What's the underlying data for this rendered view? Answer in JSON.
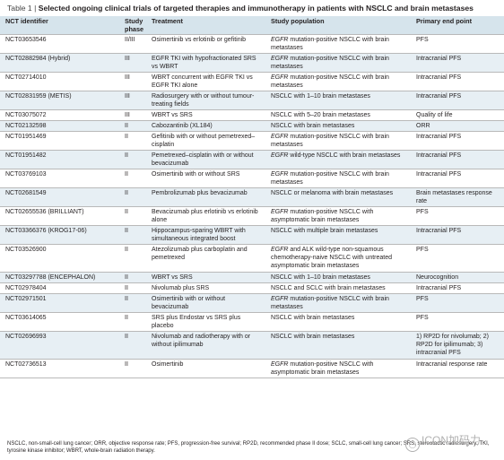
{
  "table": {
    "label": "Table 1 |",
    "title": "Selected ongoing clinical trials of targeted therapies and immunotherapy in patients with NSCLC and brain metastases",
    "headers": {
      "nct": "NCT identifier",
      "phase": "Study phase",
      "treatment": "Treatment",
      "population": "Study population",
      "endpoint": "Primary end point"
    },
    "rows": [
      {
        "nct": "NCT03653546",
        "phase": "II/III",
        "treatment": "Osimertinib vs erlotinib or gefitinib",
        "pop_em": "EGFR",
        "pop": " mutation-positive NSCLC with brain metastases",
        "endpoint": "PFS"
      },
      {
        "nct": "NCT02882984 (Hybrid)",
        "phase": "III",
        "treatment": "EGFR TKI with hypofractionated SRS vs WBRT",
        "pop_em": "EGFR",
        "pop": " mutation-positive NSCLC with brain metastases",
        "endpoint": "Intracranial PFS"
      },
      {
        "nct": "NCT02714010",
        "phase": "III",
        "treatment": "WBRT concurrent with EGFR TKI vs EGFR TKI alone",
        "pop_em": "EGFR",
        "pop": " mutation-positive NSCLC with brain metastases",
        "endpoint": "Intracranial PFS"
      },
      {
        "nct": "NCT02831959 (METIS)",
        "phase": "III",
        "treatment": "Radiosurgery with or without tumour-treating fields",
        "pop_em": "",
        "pop": "NSCLC with 1–10 brain metastases",
        "endpoint": "Intracranial PFS"
      },
      {
        "nct": "NCT03075072",
        "phase": "III",
        "treatment": "WBRT vs SRS",
        "pop_em": "",
        "pop": "NSCLC with 5–20 brain metastases",
        "endpoint": "Quality of life"
      },
      {
        "nct": "NCT02132598",
        "phase": "II",
        "treatment": "Cabozantinib (XL184)",
        "pop_em": "",
        "pop": "NSCLC with brain metastases",
        "endpoint": "ORR"
      },
      {
        "nct": "NCT01951469",
        "phase": "II",
        "treatment": "Gefitinib with or without pemetrexed–cisplatin",
        "pop_em": "EGFR",
        "pop": " mutation-positive NSCLC with brain metastases",
        "endpoint": "Intracranial PFS"
      },
      {
        "nct": "NCT01951482",
        "phase": "II",
        "treatment": "Pemetrexed–cisplatin with or without bevacizumab",
        "pop_em": "EGFR",
        "pop": " wild-type NSCLC with brain metastases",
        "endpoint": "Intracranial PFS"
      },
      {
        "nct": "NCT03769103",
        "phase": "II",
        "treatment": "Osimertinib with or without SRS",
        "pop_em": "EGFR",
        "pop": " mutation-positive NSCLC with brain metastases",
        "endpoint": "Intracranial PFS"
      },
      {
        "nct": "NCT02681549",
        "phase": "II",
        "treatment": "Pembrolizumab plus bevacizumab",
        "pop_em": "",
        "pop": "NSCLC or melanoma with brain metastases",
        "endpoint": "Brain metastases response rate"
      },
      {
        "nct": "NCT02655536 (BRILLIANT)",
        "phase": "II",
        "treatment": "Bevacizumab plus erlotinib vs erlotinib alone",
        "pop_em": "EGFR",
        "pop": " mutation-positive NSCLC with asymptomatic brain metastases",
        "endpoint": "PFS"
      },
      {
        "nct": "NCT03366376 (KROG17-06)",
        "phase": "II",
        "treatment": "Hippocampus-sparing WBRT with simultaneous integrated boost",
        "pop_em": "",
        "pop": "NSCLC with multiple brain metastases",
        "endpoint": "Intracranial PFS"
      },
      {
        "nct": "NCT03526900",
        "phase": "II",
        "treatment": "Atezolizumab plus carboplatin and pemetrexed",
        "pop_em": "EGFR",
        "pop": " and ALK wild-type non-squamous chemotherapy-naive NSCLC with untreated asymptomatic brain metastases",
        "endpoint": "PFS"
      },
      {
        "nct": "NCT03297788 (ENCEPHALON)",
        "phase": "II",
        "treatment": "WBRT vs SRS",
        "pop_em": "",
        "pop": "NSCLC with 1–10 brain metastases",
        "endpoint": "Neurocognition"
      },
      {
        "nct": "NCT02978404",
        "phase": "II",
        "treatment": "Nivolumab plus SRS",
        "pop_em": "",
        "pop": "NSCLC and SCLC with brain metastases",
        "endpoint": "Intracranial PFS"
      },
      {
        "nct": "NCT02971501",
        "phase": "II",
        "treatment": "Osimertinib with or without bevacizumab",
        "pop_em": "EGFR",
        "pop": " mutation-positive NSCLC with brain metastases",
        "endpoint": "PFS"
      },
      {
        "nct": "NCT03614065",
        "phase": "II",
        "treatment": "SRS plus Endostar vs SRS plus placebo",
        "pop_em": "",
        "pop": "NSCLC with brain metastases",
        "endpoint": "PFS"
      },
      {
        "nct": "NCT02696993",
        "phase": "II",
        "treatment": "Nivolumab and radiotherapy with or without ipilimumab",
        "pop_em": "",
        "pop": "NSCLC with brain metastases",
        "endpoint": "1) RP2D for nivolumab; 2) RP2D for ipilimumab; 3) intracranial PFS"
      },
      {
        "nct": "NCT02736513",
        "phase": "II",
        "treatment": "Osimertinib",
        "pop_em": "EGFR",
        "pop": " mutation-positive NSCLC with asymptomatic brain metastases",
        "endpoint": "Intracranial response rate"
      }
    ],
    "footnote": "NSCLC, non-small-cell lung cancer; ORR, objective response rate; PFS, progression-free survival; RP2D, recommended phase II dose; SCLC, small-cell lung cancer; SRS, stereotactic radiosurgery; TKI, tyrosine kinase inhibitor; WBRT, whole-brain radiation therapy."
  },
  "watermark": {
    "text": "ICON加码力"
  }
}
